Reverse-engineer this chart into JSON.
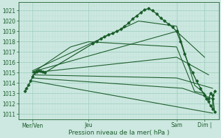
{
  "bg_color": "#cce8e0",
  "grid_major_color": "#99ccbb",
  "grid_minor_color": "#bbddd5",
  "line_color": "#1a5c2a",
  "xlabel": "Pression niveau de la mer( hPa )",
  "ylim": [
    1010.5,
    1021.8
  ],
  "xlim": [
    0.0,
    1.0
  ],
  "yticks": [
    1011,
    1012,
    1013,
    1014,
    1015,
    1016,
    1017,
    1018,
    1019,
    1020,
    1021
  ],
  "xtick_labels": [
    "Mer/Ven",
    "Jeu",
    "Sam",
    "Dim |"
  ],
  "xtick_positions": [
    0.07,
    0.35,
    0.79,
    0.93
  ],
  "fan_lines": [
    {
      "x": [
        0.07,
        0.97
      ],
      "y": [
        1014.2,
        1011.1
      ]
    },
    {
      "x": [
        0.07,
        0.82,
        0.97
      ],
      "y": [
        1014.5,
        1013.5,
        1012.5
      ]
    },
    {
      "x": [
        0.07,
        0.79,
        0.97
      ],
      "y": [
        1014.8,
        1014.5,
        1013.5
      ]
    },
    {
      "x": [
        0.07,
        0.79,
        0.95
      ],
      "y": [
        1015.0,
        1016.5,
        1014.8
      ]
    },
    {
      "x": [
        0.07,
        0.79,
        0.93
      ],
      "y": [
        1015.1,
        1019.0,
        1016.5
      ]
    },
    {
      "x": [
        0.07,
        0.6,
        0.79,
        0.88,
        0.93
      ],
      "y": [
        1015.2,
        1020.0,
        1019.5,
        1013.8,
        1013.0
      ]
    },
    {
      "x": [
        0.07,
        0.26,
        0.35,
        0.79,
        0.88,
        0.93
      ],
      "y": [
        1015.0,
        1017.5,
        1018.0,
        1017.5,
        1013.2,
        1013.0
      ]
    }
  ],
  "detailed_line_1": {
    "x": [
      0.03,
      0.04,
      0.05,
      0.06,
      0.07,
      0.08,
      0.09,
      0.1,
      0.11,
      0.12,
      0.13
    ],
    "y": [
      1013.2,
      1013.5,
      1013.8,
      1014.2,
      1014.6,
      1015.0,
      1015.1,
      1015.2,
      1015.15,
      1015.1,
      1015.0
    ]
  },
  "detailed_line_2": {
    "x": [
      0.37,
      0.39,
      0.41,
      0.43,
      0.45,
      0.47,
      0.49,
      0.51,
      0.53,
      0.55,
      0.57,
      0.59,
      0.61,
      0.63,
      0.65,
      0.67,
      0.69,
      0.71,
      0.73,
      0.75,
      0.77,
      0.79
    ],
    "y": [
      1017.8,
      1018.0,
      1018.3,
      1018.5,
      1018.7,
      1018.8,
      1019.0,
      1019.2,
      1019.5,
      1019.8,
      1020.2,
      1020.5,
      1020.8,
      1021.1,
      1021.2,
      1021.0,
      1020.7,
      1020.3,
      1020.0,
      1019.7,
      1019.4,
      1019.0
    ]
  },
  "detailed_line_3": {
    "x": [
      0.79,
      0.81,
      0.83,
      0.85,
      0.87,
      0.89,
      0.91,
      0.93,
      0.94,
      0.95,
      0.96,
      0.97,
      0.98
    ],
    "y": [
      1019.0,
      1018.0,
      1016.8,
      1015.8,
      1015.0,
      1014.2,
      1013.5,
      1012.8,
      1012.5,
      1012.5,
      1013.0,
      1012.8,
      1011.2
    ]
  },
  "right_cluster": {
    "x": [
      0.93,
      0.94,
      0.95,
      0.96,
      0.97,
      0.97,
      0.98
    ],
    "y": [
      1012.8,
      1012.5,
      1012.2,
      1011.8,
      1011.5,
      1012.5,
      1013.2
    ]
  }
}
